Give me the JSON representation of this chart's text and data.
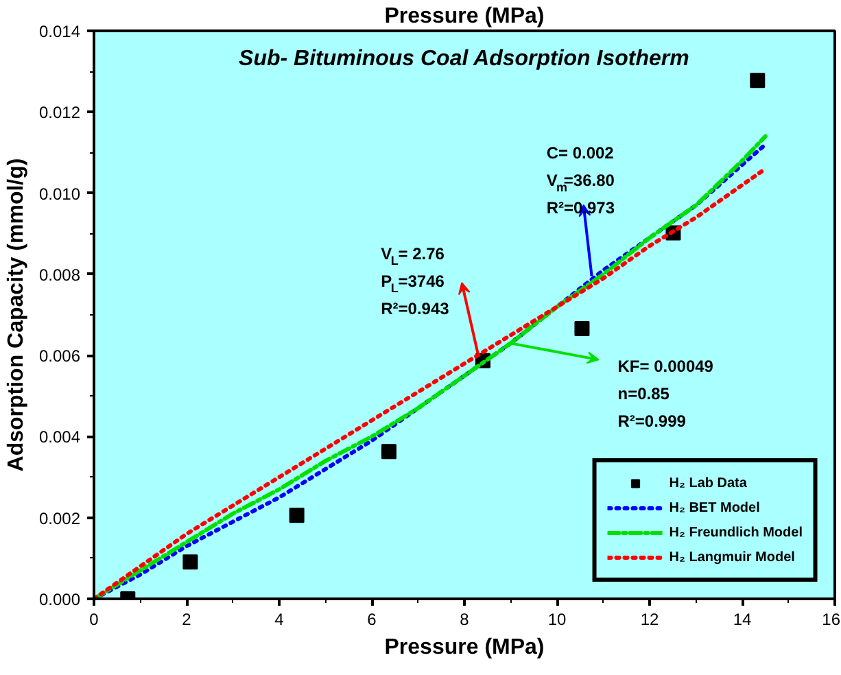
{
  "chart_data": {
    "type": "scatter",
    "title": "Sub- Bituminous Coal Adsorption Isotherm",
    "xlabel": "Pressure (MPa)",
    "x2label": "Pressure (MPa)",
    "ylabel": "Adsorption Capacity (mmol/g)",
    "xlim": [
      0,
      16
    ],
    "ylim": [
      0,
      0.014
    ],
    "xticks": [
      0,
      2,
      4,
      6,
      8,
      10,
      12,
      14,
      16
    ],
    "yticks": [
      {
        "value": 0,
        "label": "0.000"
      },
      {
        "value": 0.002,
        "label": "0.002"
      },
      {
        "value": 0.004,
        "label": "0.004"
      },
      {
        "value": 0.006,
        "label": "0.006"
      },
      {
        "value": 0.008,
        "label": "0.008"
      },
      {
        "value": 0.01,
        "label": "0.010"
      },
      {
        "value": 0.012,
        "label": "0.012"
      },
      {
        "value": 0.014,
        "label": "0.014"
      }
    ],
    "grid": false,
    "legend": "bottom right",
    "series": [
      {
        "name": "H₂ Lab Data",
        "marker": "square",
        "color": "#000000",
        "x": [
          0.73,
          2.08,
          4.38,
          6.37,
          8.4,
          10.54,
          12.51,
          14.33
        ],
        "values": [
          0,
          0.00091,
          0.00206,
          0.00363,
          0.00587,
          0.00666,
          0.00902,
          0.01278
        ]
      },
      {
        "name": "H₂ BET Model",
        "type": "line",
        "marker": "none",
        "line_style": "dotted",
        "color": "#0000ff",
        "x": [
          0,
          1,
          2,
          3,
          4,
          5,
          6,
          7,
          8,
          9,
          10,
          11,
          12,
          13,
          14,
          14.5
        ],
        "values": [
          0,
          0.0006,
          0.0013,
          0.0019,
          0.0025,
          0.0032,
          0.0039,
          0.0047,
          0.0055,
          0.0063,
          0.0072,
          0.0081,
          0.0089,
          0.0097,
          0.0107,
          0.0112
        ]
      },
      {
        "name": "H₂ Freundlich Model",
        "type": "line",
        "marker": "none",
        "line_style": "dashed",
        "color": "#00e000",
        "x": [
          0,
          1,
          2,
          3,
          4,
          5,
          6,
          7,
          8,
          9,
          10,
          11,
          12,
          13,
          14,
          14.5
        ],
        "values": [
          0,
          0.0007,
          0.0014,
          0.0021,
          0.0027,
          0.0034,
          0.004,
          0.0047,
          0.0055,
          0.0063,
          0.0072,
          0.008,
          0.0089,
          0.0097,
          0.0108,
          0.0114
        ]
      },
      {
        "name": "H₂ Langmuir Model",
        "type": "line",
        "marker": "none",
        "line_style": "dotted",
        "color": "#ff0000",
        "x": [
          0,
          1,
          2,
          3,
          4,
          5,
          6,
          7,
          8,
          9,
          10,
          11,
          12,
          13,
          14,
          14.5
        ],
        "values": [
          0,
          0.0008,
          0.0016,
          0.0023,
          0.003,
          0.0037,
          0.0044,
          0.0051,
          0.0058,
          0.0065,
          0.0072,
          0.0079,
          0.0087,
          0.0094,
          0.0102,
          0.0106
        ]
      }
    ],
    "annotations": [
      {
        "text": "V$_{L}$= 2.76\nP$_{L}$=3746\nR²=0.943",
        "x": 8.3,
        "y": 0.006
      },
      {
        "text": "C= 0.002\nV$_{m}$=36.80\nR²=0.973",
        "x": 10.75,
        "y": 0.00795
      },
      {
        "text": "KF= 0.00049\nn=0.85\nR²=0.999",
        "x": 9,
        "y": 0.0063
      }
    ]
  }
}
